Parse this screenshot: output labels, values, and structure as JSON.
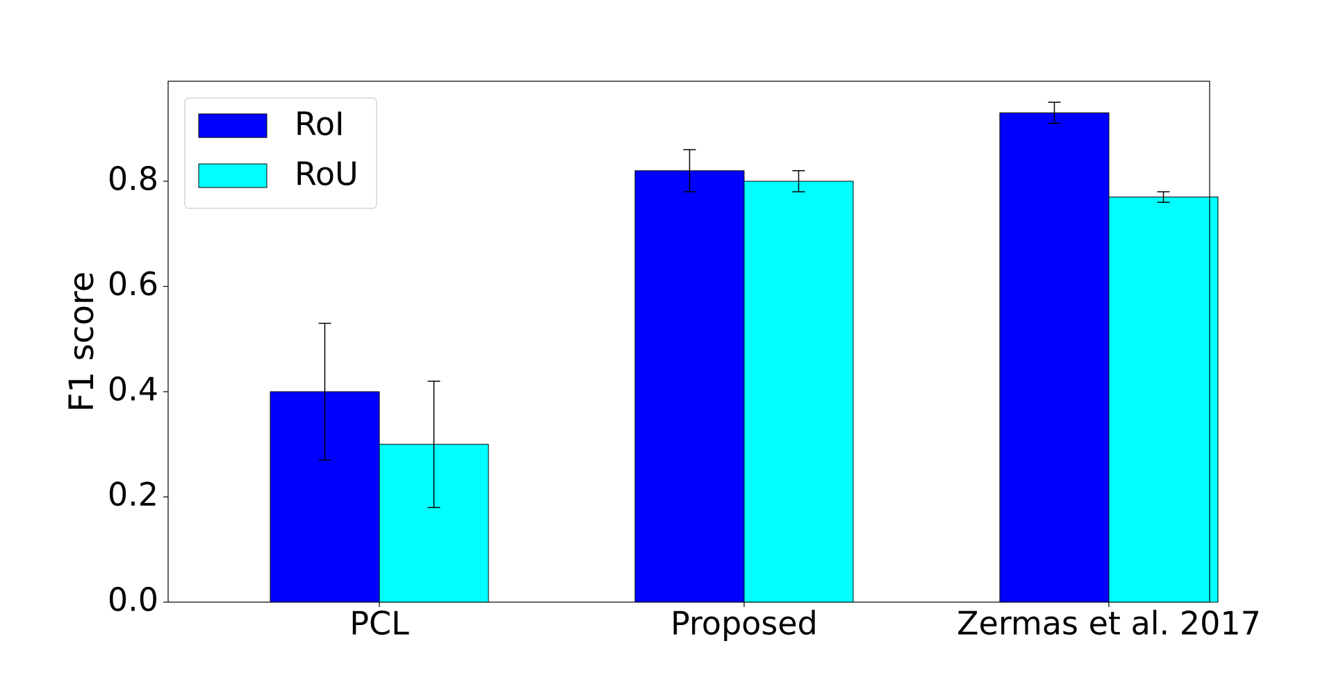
{
  "chart_data": {
    "type": "bar",
    "title": "",
    "xlabel": "",
    "ylabel": "F1 score",
    "categories": [
      "PCL",
      "Proposed",
      "Zermas et al. 2017"
    ],
    "series": [
      {
        "name": "RoI",
        "color": "#0000ff",
        "values": [
          0.4,
          0.82,
          0.93
        ],
        "errors": [
          0.13,
          0.04,
          0.02
        ]
      },
      {
        "name": "RoU",
        "color": "#00ffff",
        "values": [
          0.3,
          0.8,
          0.77
        ],
        "errors": [
          0.12,
          0.02,
          0.01
        ]
      }
    ],
    "ylim": [
      0,
      0.99
    ],
    "yticks": [
      0.0,
      0.2,
      0.4,
      0.6,
      0.8
    ],
    "ytick_labels": [
      "0.0",
      "0.2",
      "0.4",
      "0.6",
      "0.8"
    ],
    "grid": false,
    "legend_position": "upper-left"
  }
}
